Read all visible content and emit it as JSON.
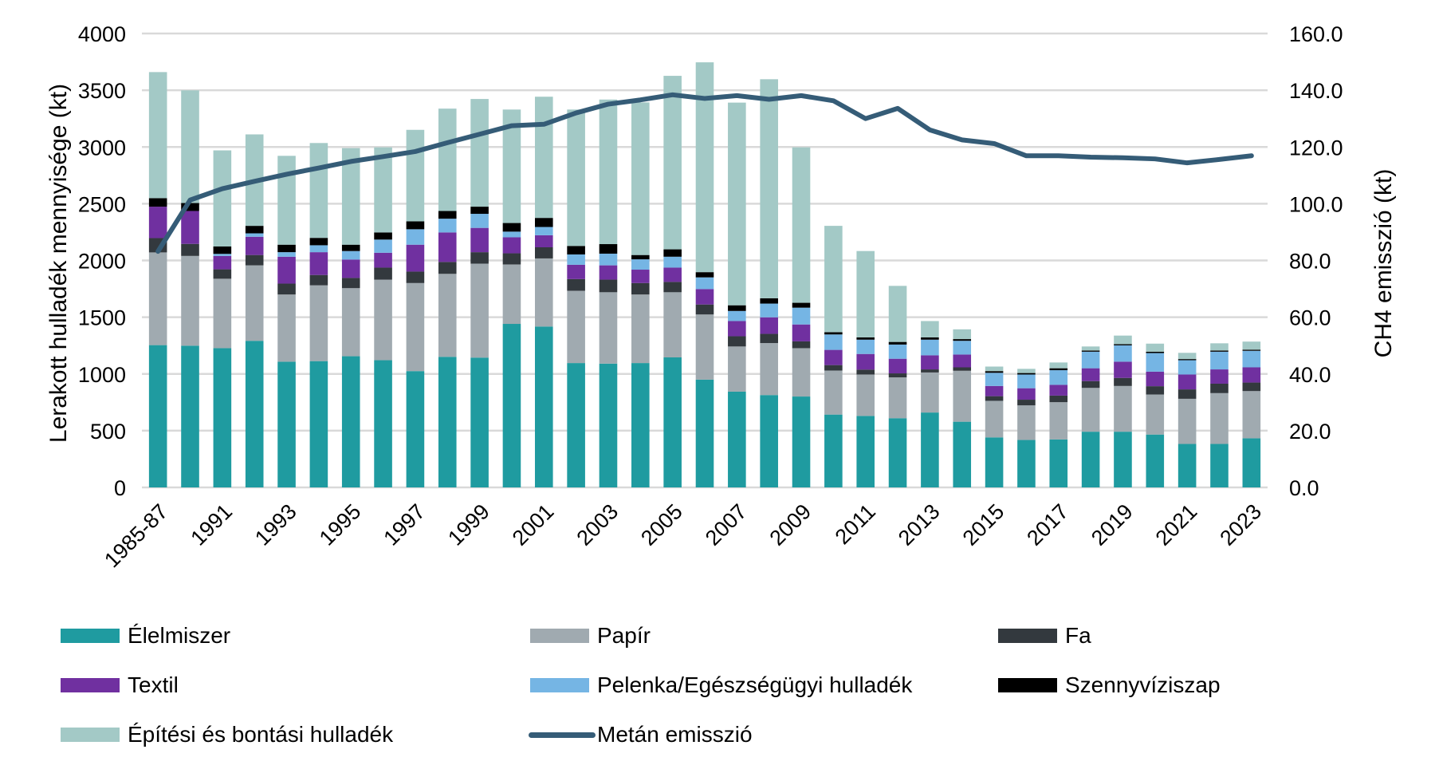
{
  "chart_data": {
    "type": "bar",
    "stacked": true,
    "title": "",
    "xlabel": "",
    "ylabel": "Lerakott hulladék mennyisége (kt)",
    "y2label": "CH4 emisszió (kt)",
    "ylim": [
      0,
      4000
    ],
    "y2lim": [
      0,
      160
    ],
    "yticks": [
      "0",
      "500",
      "1000",
      "1500",
      "2000",
      "2500",
      "3000",
      "3500",
      "4000"
    ],
    "y2ticks": [
      "0.0",
      "20.0",
      "40.0",
      "60.0",
      "80.0",
      "100.0",
      "120.0",
      "140.0",
      "160.0"
    ],
    "grid": true,
    "legend_position": "bottom",
    "categories": [
      "1985-87",
      "1990",
      "1991",
      "1992",
      "1993",
      "1994",
      "1995",
      "1996",
      "1997",
      "1998",
      "1999",
      "2000",
      "2001",
      "2002",
      "2003",
      "2004",
      "2005",
      "2006",
      "2007",
      "2008",
      "2009",
      "2010",
      "2011",
      "2012",
      "2013",
      "2014",
      "2015",
      "2016",
      "2017",
      "2018",
      "2019",
      "2020",
      "2021",
      "2022",
      "2023"
    ],
    "shown_tick_labels": [
      "1985-87",
      "1991",
      "1993",
      "1995",
      "1997",
      "1999",
      "2001",
      "2003",
      "2005",
      "2007",
      "2009",
      "2011",
      "2013",
      "2015",
      "2017",
      "2019",
      "2021",
      "2023"
    ],
    "series": [
      {
        "name": "Élelmiszer",
        "color": "#1f9ba0",
        "axis": "left",
        "values": [
          1254,
          1249,
          1227,
          1292,
          1108,
          1113,
          1156,
          1121,
          1025,
          1151,
          1144,
          1441,
          1418,
          1096,
          1091,
          1096,
          1146,
          950,
          844,
          814,
          801,
          642,
          630,
          610,
          660,
          579,
          441,
          418,
          423,
          491,
          491,
          466,
          383,
          383,
          433
        ]
      },
      {
        "name": "Papír",
        "color": "#a0aab0",
        "axis": "left",
        "values": [
          817,
          791,
          612,
          665,
          592,
          668,
          600,
          710,
          776,
          731,
          828,
          524,
          600,
          637,
          629,
          604,
          574,
          574,
          398,
          458,
          426,
          388,
          365,
          360,
          353,
          449,
          322,
          305,
          328,
          386,
          403,
          353,
          398,
          448,
          416
        ]
      },
      {
        "name": "Fa",
        "color": "#33393e",
        "axis": "left",
        "values": [
          126,
          106,
          83,
          91,
          96,
          91,
          90,
          106,
          101,
          105,
          101,
          98,
          98,
          103,
          111,
          101,
          91,
          88,
          90,
          81,
          60,
          48,
          43,
          35,
          27,
          30,
          41,
          50,
          58,
          60,
          71,
          73,
          83,
          83,
          75
        ]
      },
      {
        "name": "Textil",
        "color": "#7030a0",
        "axis": "left",
        "values": [
          277,
          290,
          118,
          161,
          237,
          201,
          162,
          131,
          237,
          260,
          214,
          141,
          106,
          126,
          126,
          118,
          126,
          136,
          134,
          146,
          149,
          134,
          138,
          129,
          124,
          113,
          90,
          101,
          95,
          113,
          143,
          128,
          131,
          126,
          134
        ]
      },
      {
        "name": "Pelenka/Egészségügyi hulladék",
        "color": "#75b5e4",
        "axis": "left",
        "values": [
          0,
          0,
          18,
          30,
          40,
          61,
          75,
          116,
          136,
          121,
          124,
          50,
          73,
          91,
          103,
          91,
          96,
          103,
          89,
          121,
          148,
          136,
          126,
          125,
          138,
          121,
          116,
          121,
          129,
          146,
          144,
          164,
          126,
          156,
          146
        ]
      },
      {
        "name": "Szennyvíziszap",
        "color": "#000000",
        "axis": "left",
        "values": [
          75,
          70,
          65,
          66,
          66,
          65,
          56,
          63,
          70,
          68,
          63,
          76,
          80,
          75,
          84,
          38,
          65,
          46,
          50,
          47,
          43,
          20,
          20,
          23,
          20,
          15,
          15,
          13,
          17,
          10,
          10,
          12,
          10,
          10,
          10
        ]
      },
      {
        "name": "Építési és bontási hulladék",
        "color": "#a3c9c6",
        "axis": "left",
        "values": [
          1111,
          993,
          847,
          806,
          783,
          836,
          851,
          750,
          806,
          902,
          949,
          1000,
          1068,
          1202,
          1274,
          1345,
          1529,
          1849,
          1786,
          1930,
          1370,
          937,
          761,
          494,
          144,
          86,
          40,
          37,
          51,
          36,
          76,
          71,
          55,
          64,
          71
        ]
      }
    ],
    "line_series": {
      "name": "Metán emisszió",
      "color": "#355c77",
      "axis": "right",
      "values": [
        83.2,
        101.3,
        105.3,
        107.9,
        110.4,
        112.6,
        114.9,
        116.6,
        118.4,
        121.5,
        124.5,
        127.5,
        128.0,
        132.0,
        135.1,
        136.6,
        138.4,
        137.1,
        138.1,
        136.8,
        138.1,
        136.3,
        130.0,
        133.6,
        126.0,
        122.5,
        121.2,
        116.9,
        116.9,
        116.4,
        116.2,
        115.8,
        114.4,
        115.6,
        116.9
      ]
    },
    "legend": [
      {
        "label": "Élelmiszer",
        "kind": "box",
        "color": "#1f9ba0"
      },
      {
        "label": "Papír",
        "kind": "box",
        "color": "#a0aab0"
      },
      {
        "label": "Fa",
        "kind": "box",
        "color": "#33393e"
      },
      {
        "label": "Textil",
        "kind": "box",
        "color": "#7030a0"
      },
      {
        "label": "Pelenka/Egészségügyi hulladék",
        "kind": "box",
        "color": "#75b5e4"
      },
      {
        "label": "Szennyvíziszap",
        "kind": "box",
        "color": "#000000"
      },
      {
        "label": "Építési és bontási hulladék",
        "kind": "box",
        "color": "#a3c9c6"
      },
      {
        "label": "Metán emisszió",
        "kind": "line",
        "color": "#355c77"
      }
    ]
  }
}
